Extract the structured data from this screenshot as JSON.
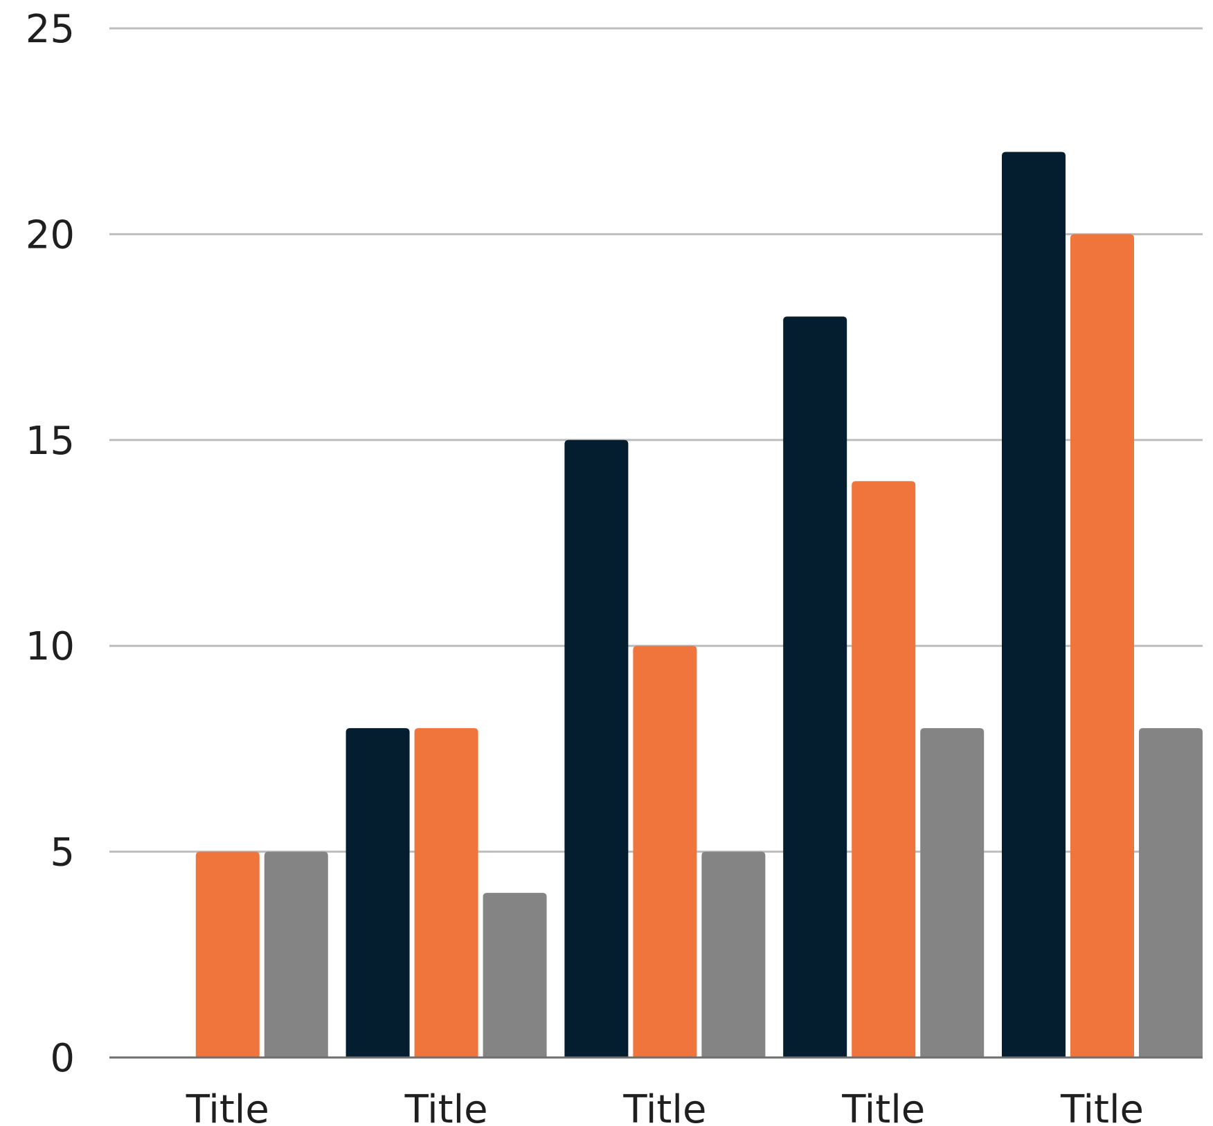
{
  "chart_data": {
    "type": "bar",
    "categories": [
      "Title",
      "Title",
      "Title",
      "Title",
      "Title"
    ],
    "series": [
      {
        "color": "#041e30",
        "values": [
          0,
          8,
          15,
          18,
          22
        ]
      },
      {
        "color": "#ef753d",
        "values": [
          5,
          8,
          10,
          14,
          20
        ]
      },
      {
        "color": "#858484",
        "values": [
          5,
          4,
          5,
          8,
          8
        ]
      }
    ],
    "ylim": [
      0,
      25
    ],
    "yticks": [
      0,
      5,
      10,
      15,
      20,
      25
    ],
    "grid": true,
    "legend": false
  }
}
